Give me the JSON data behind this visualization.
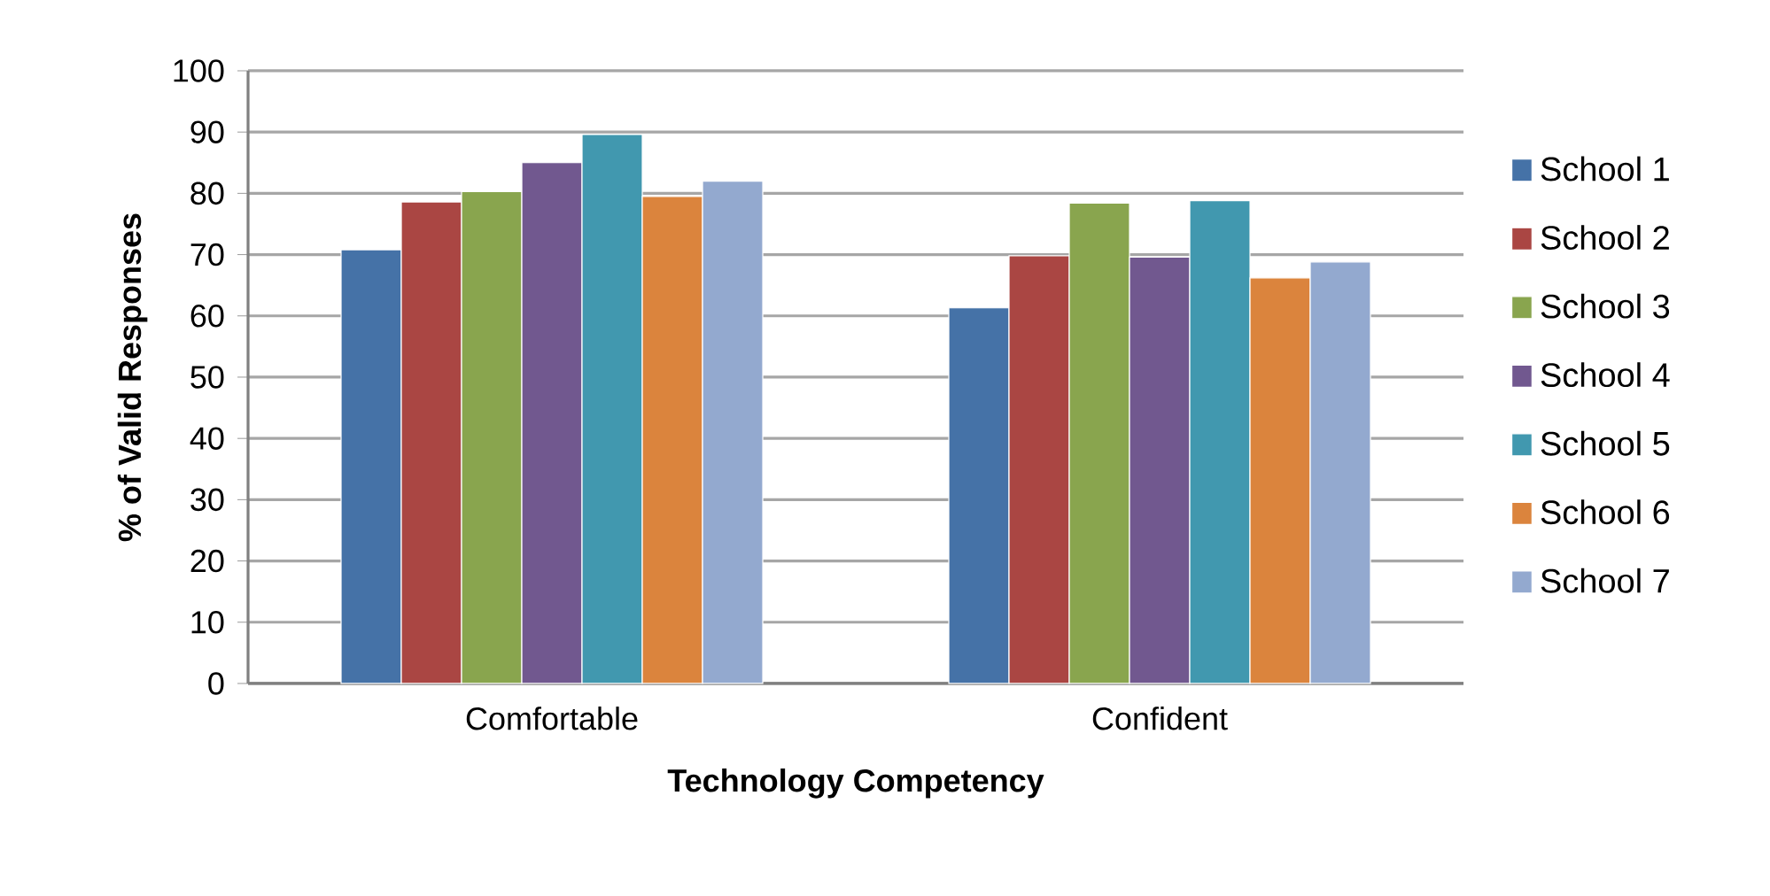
{
  "chart_data": {
    "type": "bar",
    "xlabel": "Technology Competency",
    "ylabel": "% of Valid Responses",
    "categories": [
      "Comfortable",
      "Confident"
    ],
    "series": [
      {
        "name": "School 1",
        "color": "#4572a7",
        "values": [
          70.8,
          61.3
        ]
      },
      {
        "name": "School 2",
        "color": "#aa4643",
        "values": [
          78.6,
          69.8
        ]
      },
      {
        "name": "School 3",
        "color": "#89a54e",
        "values": [
          80.3,
          78.4
        ]
      },
      {
        "name": "School 4",
        "color": "#71588f",
        "values": [
          85,
          69.6
        ]
      },
      {
        "name": "School 5",
        "color": "#4198af",
        "values": [
          89.6,
          78.8
        ]
      },
      {
        "name": "School 6",
        "color": "#db843d",
        "values": [
          79.5,
          66.2
        ]
      },
      {
        "name": "School 7",
        "color": "#93a9cf",
        "values": [
          82,
          68.8
        ]
      }
    ],
    "ylim": [
      0,
      100
    ],
    "yticks": [
      0,
      10,
      20,
      30,
      40,
      50,
      60,
      70,
      80,
      90,
      100
    ],
    "grid": "y",
    "legend": "right"
  }
}
